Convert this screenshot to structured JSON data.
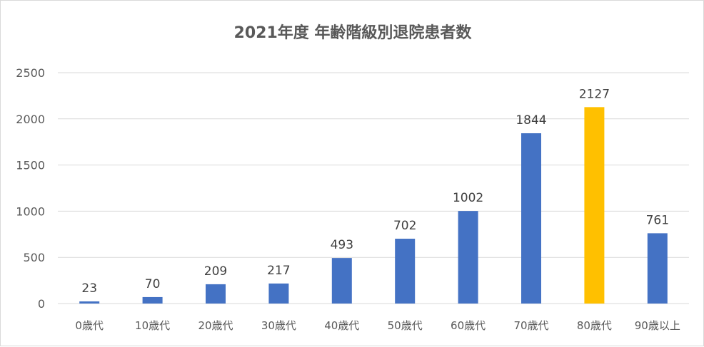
{
  "chart_data": {
    "type": "bar",
    "title": "2021年度 年齢階級別退院患者数",
    "xlabel": "",
    "ylabel": "",
    "categories": [
      "0歳代",
      "10歳代",
      "20歳代",
      "30歳代",
      "40歳代",
      "50歳代",
      "60歳代",
      "70歳代",
      "80歳代",
      "90歳以上"
    ],
    "values": [
      23,
      70,
      209,
      217,
      493,
      702,
      1002,
      1844,
      2127,
      761
    ],
    "ylim": [
      0,
      2500
    ],
    "yticks": [
      0,
      500,
      1000,
      1500,
      2000,
      2500
    ],
    "grid": true,
    "legend": "none",
    "colors": {
      "bar": "#4472c4",
      "highlight": "#ffc000",
      "grid": "#d9d9d9",
      "text": "#595959"
    },
    "highlight_category": "80歳代"
  }
}
